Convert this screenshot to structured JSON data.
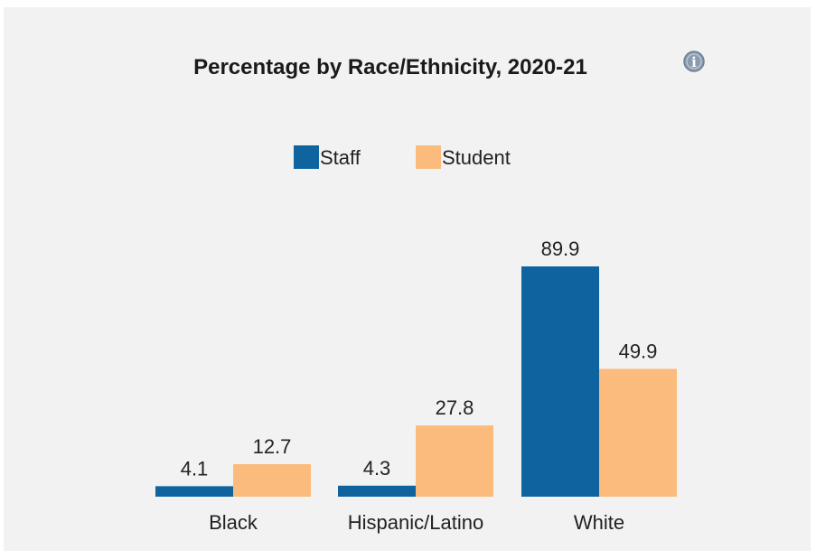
{
  "chart_data": {
    "type": "bar",
    "title": "Percentage by Race/Ethnicity, 2020-21",
    "title_icon": "info-icon",
    "categories": [
      "Black",
      "Hispanic/Latino",
      "White"
    ],
    "series": [
      {
        "name": "Staff",
        "color": "#0f64a0",
        "values": [
          4.1,
          4.3,
          89.9
        ]
      },
      {
        "name": "Student",
        "color": "#fbbb7c",
        "values": [
          12.7,
          27.8,
          49.9
        ]
      }
    ],
    "value_labels": [
      [
        "4.1",
        "4.3",
        "89.9"
      ],
      [
        "12.7",
        "27.8",
        "49.9"
      ]
    ],
    "ylim": [
      0,
      100
    ],
    "grid": false,
    "legend": "top-center",
    "xlabel": "",
    "ylabel": ""
  }
}
